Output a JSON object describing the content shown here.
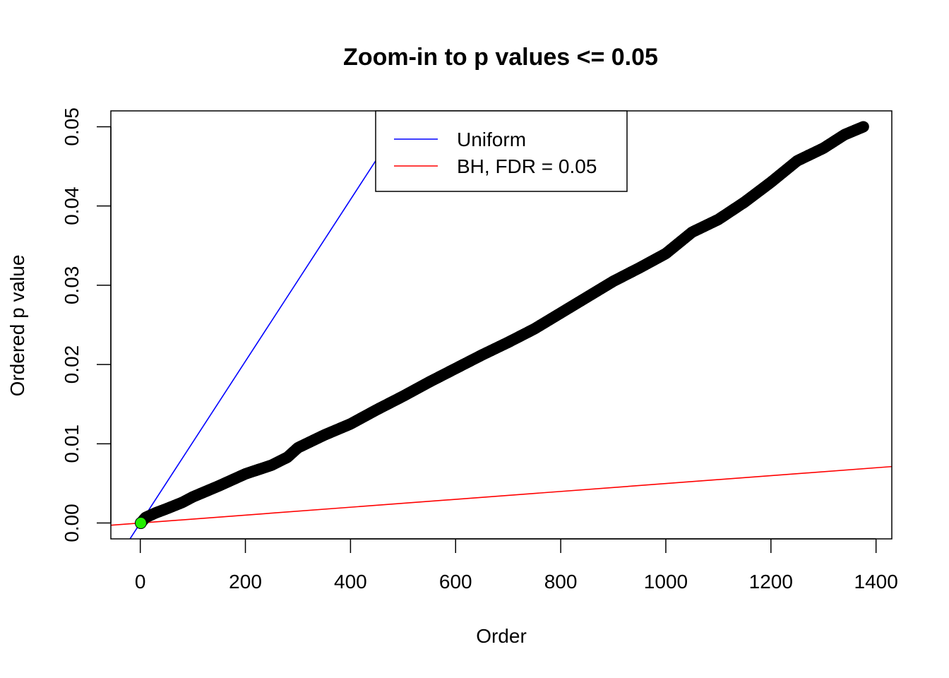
{
  "chart_data": {
    "type": "scatter",
    "title": "Zoom-in to p values <= 0.05",
    "xlabel": "Order",
    "ylabel": "Ordered p value",
    "xlim": [
      -56,
      1430
    ],
    "ylim": [
      -0.002,
      0.052
    ],
    "xticks": [
      0,
      200,
      400,
      600,
      800,
      1000,
      1200,
      1400
    ],
    "xtick_labels": [
      "0",
      "200",
      "400",
      "600",
      "800",
      "1000",
      "1200",
      "1400"
    ],
    "yticks": [
      0.0,
      0.01,
      0.02,
      0.03,
      0.04,
      0.05
    ],
    "ytick_labels": [
      "0.00",
      "0.01",
      "0.02",
      "0.03",
      "0.04",
      "0.05"
    ],
    "grid": false,
    "legend_position": "top-center",
    "n_points": 1376,
    "series": [
      {
        "kind": "points",
        "color": "#000000",
        "x": [
          1,
          10,
          30,
          50,
          80,
          100,
          150,
          200,
          250,
          280,
          300,
          350,
          400,
          450,
          500,
          550,
          600,
          650,
          700,
          750,
          800,
          850,
          900,
          950,
          1000,
          1050,
          1100,
          1150,
          1200,
          1250,
          1300,
          1340,
          1376
        ],
        "y": [
          0.0,
          0.0007,
          0.0013,
          0.0018,
          0.0026,
          0.0033,
          0.0047,
          0.0062,
          0.0073,
          0.0083,
          0.0095,
          0.0111,
          0.0125,
          0.0143,
          0.016,
          0.0178,
          0.0195,
          0.0212,
          0.0228,
          0.0245,
          0.0265,
          0.0285,
          0.0305,
          0.0322,
          0.034,
          0.0367,
          0.0383,
          0.0405,
          0.043,
          0.0457,
          0.0473,
          0.049,
          0.05
        ]
      },
      {
        "kind": "highlight",
        "color": "#22ee00",
        "x": [
          1
        ],
        "y": [
          0.0
        ]
      },
      {
        "kind": "line",
        "name": "Uniform",
        "color": "#0000ff",
        "intercept": 0,
        "slope": 0.00010204
      },
      {
        "kind": "line",
        "name": "BH, FDR = 0.05",
        "color": "#ff0000",
        "intercept": 0,
        "slope": 4.9808e-06
      }
    ]
  }
}
